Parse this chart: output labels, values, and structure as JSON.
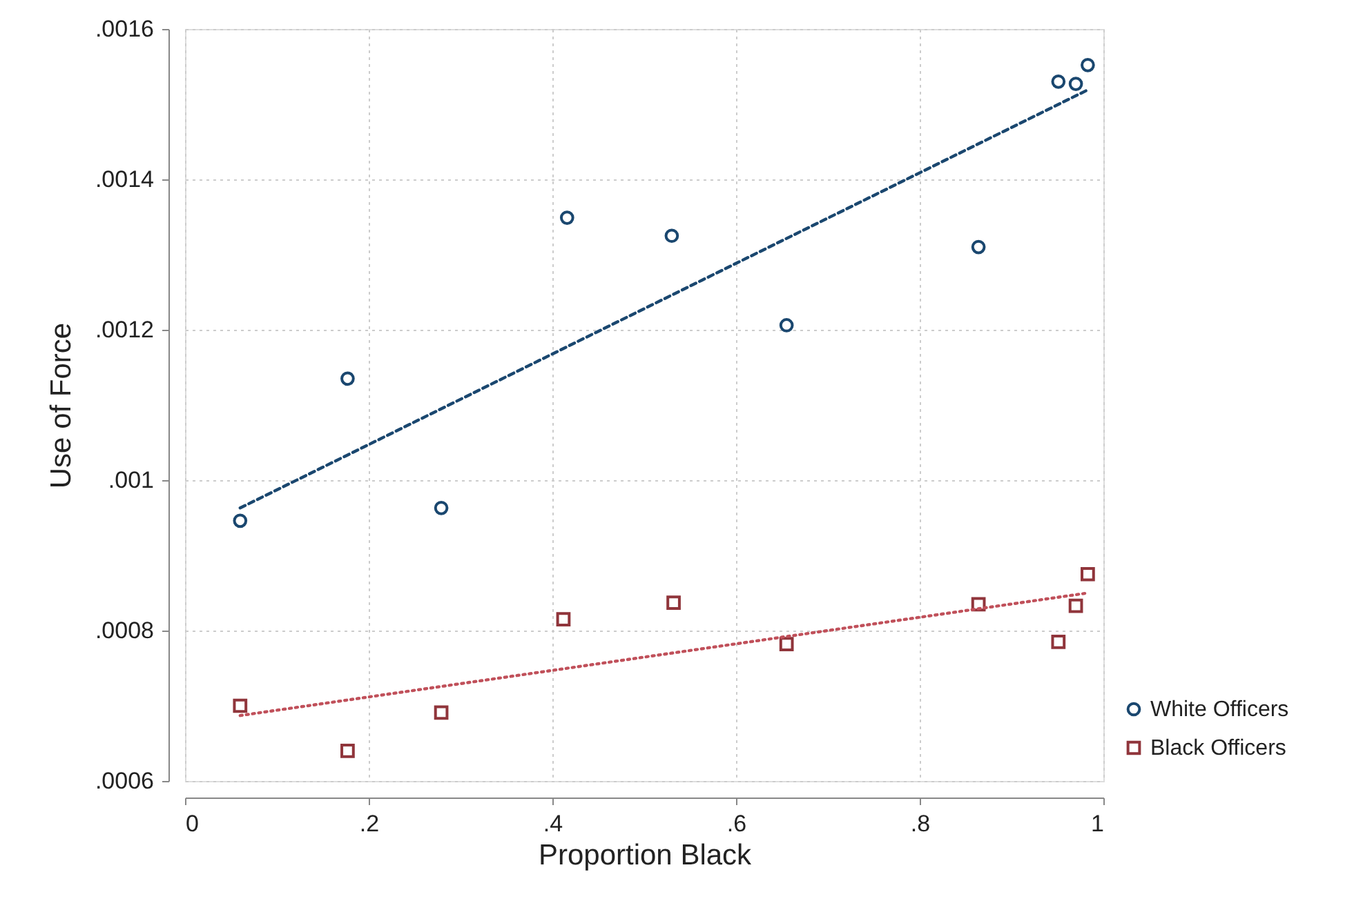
{
  "chart_data": {
    "type": "scatter",
    "xlabel": "Proportion Black",
    "ylabel": "Use of Force",
    "xlim": [
      0,
      1
    ],
    "ylim": [
      0.0006,
      0.0016
    ],
    "xticks": [
      0,
      {
        "value": 0.2,
        "label": ".2"
      },
      {
        "value": 0.4,
        "label": ".4"
      },
      {
        "value": 0.6,
        "label": ".6"
      },
      {
        "value": 0.8,
        "label": ".8"
      },
      1
    ],
    "yticks": [
      {
        "value": 0.0006,
        "label": ".0006"
      },
      {
        "value": 0.0008,
        "label": ".0008"
      },
      {
        "value": 0.001,
        "label": ".001"
      },
      {
        "value": 0.0012,
        "label": ".0012"
      },
      {
        "value": 0.0014,
        "label": ".0014"
      },
      {
        "value": 0.0016,
        "label": ".0016"
      }
    ],
    "grid": true,
    "legend": "bottom right",
    "series": [
      {
        "name": "White Officers",
        "marker": "circle",
        "color": "#1a476f",
        "x": [
          0.06,
          0.177,
          0.279,
          0.416,
          0.53,
          0.655,
          0.864,
          0.951,
          0.97,
          0.983
        ],
        "values": [
          0.000946,
          0.001135,
          0.000963,
          0.001349,
          0.001325,
          0.001206,
          0.00131,
          0.00153,
          0.001527,
          0.001552
        ]
      },
      {
        "name": "Black Officers",
        "marker": "square",
        "color": "#90353b",
        "x": [
          0.06,
          0.177,
          0.279,
          0.412,
          0.532,
          0.655,
          0.864,
          0.951,
          0.97,
          0.983
        ],
        "values": [
          0.0007,
          0.00064,
          0.000691,
          0.000815,
          0.000837,
          0.000782,
          0.000835,
          0.000785,
          0.000833,
          0.000875
        ]
      },
      {
        "type": "line",
        "line_style": "dashed",
        "color": "#1a476f",
        "x": [
          0.06,
          0.983
        ],
        "values": [
          0.000963,
          0.001519
        ]
      },
      {
        "type": "line",
        "line_style": "dotted",
        "color": "#c0505a",
        "x": [
          0.06,
          0.983
        ],
        "values": [
          0.000687,
          0.00085
        ]
      }
    ]
  }
}
